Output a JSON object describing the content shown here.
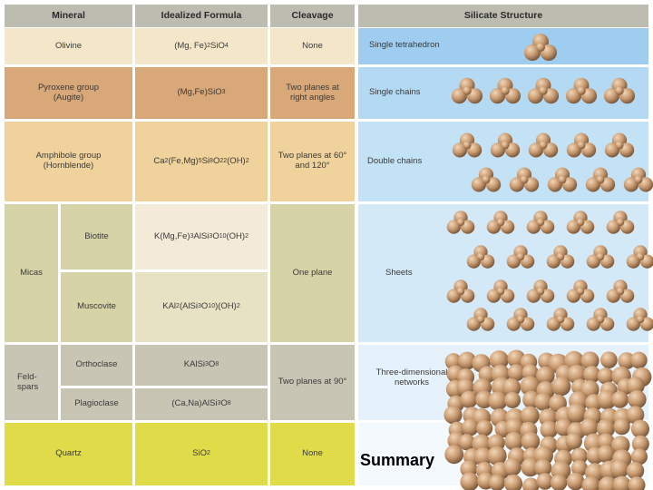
{
  "headers": {
    "mineral": "Mineral",
    "formula": "Idealized Formula",
    "cleavage": "Cleavage",
    "structure": "Silicate Structure"
  },
  "rows": {
    "olivine": {
      "mineral": "Olivine",
      "formula_parts": [
        "(Mg, Fe)",
        "2",
        "SiO",
        "4"
      ],
      "cleavage": "None",
      "structure": "Single tetrahedron"
    },
    "pyroxene": {
      "mineral": "Pyroxene group (Augite)",
      "formula_parts": [
        "(Mg,Fe)SiO",
        "3"
      ],
      "cleavage": "Two planes at right angles",
      "structure": "Single chains"
    },
    "amphibole": {
      "mineral": "Amphibole group (Hornblende)",
      "formula_parts": [
        "Ca",
        "2",
        " (Fe,Mg)",
        "5",
        "Si",
        "8",
        "O",
        "22",
        "(OH)",
        "2"
      ],
      "cleavage": "Two planes at 60° and 120°",
      "structure": "Double chains"
    },
    "micas": {
      "group": "Micas",
      "biotite": {
        "name": "Biotite",
        "formula_parts": [
          "K(Mg,Fe)",
          "3",
          "AlSi",
          "3",
          "O",
          "10",
          "(OH)",
          "2"
        ]
      },
      "muscovite": {
        "name": "Muscovite",
        "formula_parts": [
          "KAl",
          "2",
          "(AlSi",
          "3",
          "O",
          "10",
          ")(OH)",
          "2"
        ]
      },
      "cleavage": "One plane",
      "structure": "Sheets"
    },
    "feldspars": {
      "group": "Feld-spars",
      "orthoclase": {
        "name": "Orthoclase",
        "formula_parts": [
          "KAlSi",
          "3",
          "O",
          "8"
        ]
      },
      "plagioclase": {
        "name": "Plagioclase",
        "formula_parts": [
          "(Ca,Na)AlSi",
          "3",
          "O",
          "8"
        ]
      },
      "cleavage": "Two planes at 90°",
      "structure": "Three-dimensional networks"
    },
    "quartz": {
      "mineral": "Quartz",
      "formula_parts": [
        "SiO",
        "2"
      ],
      "cleavage": "None"
    }
  },
  "overlay": {
    "label": "Summary"
  },
  "colors": {
    "header": "#bdbcb0",
    "olivine": "#f3e6c9",
    "pyroxene": "#d8a878",
    "amphibole": "#f0d29c",
    "micas": "#d6d3a6",
    "feldspars": "#c9c5b5",
    "quartz": "#e0db48",
    "structure_blue": "#9ecdf0",
    "sphere": "#c89a70"
  }
}
